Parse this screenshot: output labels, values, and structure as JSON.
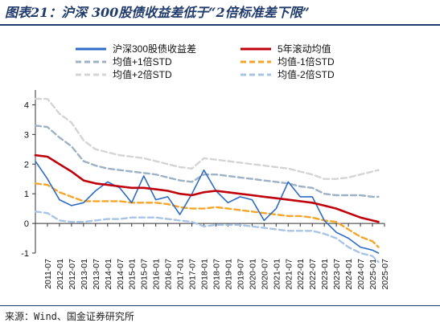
{
  "figure_title": "图表21：沪深 300股债收益差低于“2倍标准差下限”",
  "source": "来源：Wind、国金证券研究所",
  "colors": {
    "title": "#1f3a6b",
    "spread": "#2e6bc4",
    "ma5y": "#c0000a",
    "plus1": "#9db2c4",
    "minus1": "#f4a52a",
    "plus2": "#d4d4d4",
    "minus2": "#a9c4e6"
  },
  "chart_data": {
    "type": "line",
    "ylim": [
      -1,
      4.5
    ],
    "yticks": [
      "-1",
      "0",
      "1",
      "2",
      "3",
      "4"
    ],
    "xlim": [
      "2011-01",
      "2025-07"
    ],
    "xticks": [
      "2011-07",
      "2012-01",
      "2012-07",
      "2013-01",
      "2013-07",
      "2014-01",
      "2014-07",
      "2015-01",
      "2015-07",
      "2016-01",
      "2016-07",
      "2017-01",
      "2017-07",
      "2018-01",
      "2018-07",
      "2019-01",
      "2019-07",
      "2020-01",
      "2020-07",
      "2021-01",
      "2021-07",
      "2022-01",
      "2022-07",
      "2023-01",
      "2023-07",
      "2024-01",
      "2024-07",
      "2025-01",
      "2025-07"
    ],
    "legend": [
      "沪深300股债收益差",
      "5年滚动均值",
      "均值+1倍STD",
      "均值-1倍STD",
      "均值+2倍STD",
      "均值-2倍STD"
    ],
    "x": [
      "2011-01",
      "2011-07",
      "2012-01",
      "2012-07",
      "2013-01",
      "2013-07",
      "2014-01",
      "2014-07",
      "2015-01",
      "2015-07",
      "2016-01",
      "2016-07",
      "2017-01",
      "2017-07",
      "2018-01",
      "2018-07",
      "2019-01",
      "2019-07",
      "2020-01",
      "2020-07",
      "2021-01",
      "2021-07",
      "2022-01",
      "2022-07",
      "2023-01",
      "2023-07",
      "2024-01",
      "2024-07",
      "2025-01",
      "2025-04"
    ],
    "series": [
      {
        "name": "沪深300股债收益差",
        "values": [
          2.1,
          1.5,
          0.8,
          0.6,
          0.7,
          1.1,
          1.4,
          1.2,
          0.7,
          1.6,
          0.8,
          0.9,
          0.3,
          1.0,
          1.8,
          1.1,
          0.7,
          0.9,
          0.8,
          0.1,
          0.5,
          1.4,
          0.9,
          0.9,
          0.1,
          -0.3,
          -0.5,
          -0.8,
          -0.9,
          -1.0
        ]
      },
      {
        "name": "5年滚动均值",
        "values": [
          2.3,
          2.25,
          2.0,
          1.75,
          1.45,
          1.35,
          1.3,
          1.25,
          1.2,
          1.2,
          1.15,
          1.1,
          1.0,
          0.95,
          1.05,
          1.1,
          1.05,
          1.0,
          0.95,
          0.9,
          0.85,
          0.8,
          0.75,
          0.7,
          0.6,
          0.5,
          0.35,
          0.2,
          0.1,
          0.05
        ]
      },
      {
        "name": "均值+1倍STD",
        "values": [
          3.3,
          3.25,
          2.9,
          2.6,
          2.1,
          1.95,
          1.85,
          1.8,
          1.75,
          1.7,
          1.65,
          1.55,
          1.45,
          1.4,
          1.65,
          1.65,
          1.6,
          1.55,
          1.5,
          1.45,
          1.4,
          1.35,
          1.25,
          1.2,
          1.0,
          0.95,
          0.95,
          0.95,
          0.9,
          0.9
        ]
      },
      {
        "name": "均值-1倍STD",
        "values": [
          1.35,
          1.3,
          1.05,
          0.9,
          0.75,
          0.75,
          0.75,
          0.75,
          0.7,
          0.7,
          0.7,
          0.65,
          0.55,
          0.5,
          0.5,
          0.55,
          0.5,
          0.45,
          0.4,
          0.35,
          0.3,
          0.25,
          0.25,
          0.2,
          0.1,
          0.05,
          -0.2,
          -0.45,
          -0.6,
          -0.8
        ]
      },
      {
        "name": "均值+2倍STD",
        "values": [
          4.2,
          4.2,
          3.7,
          3.4,
          2.8,
          2.5,
          2.4,
          2.3,
          2.25,
          2.2,
          2.1,
          2.0,
          1.9,
          1.85,
          2.2,
          2.15,
          2.1,
          2.05,
          2.0,
          1.95,
          1.9,
          1.85,
          1.75,
          1.65,
          1.5,
          1.5,
          1.55,
          1.65,
          1.75,
          1.8
        ]
      },
      {
        "name": "均值-2倍STD",
        "values": [
          0.4,
          0.35,
          0.1,
          0.05,
          0.05,
          0.1,
          0.15,
          0.15,
          0.2,
          0.2,
          0.2,
          0.15,
          0.1,
          0.05,
          -0.1,
          -0.05,
          -0.05,
          -0.05,
          -0.1,
          -0.15,
          -0.2,
          -0.25,
          -0.25,
          -0.25,
          -0.35,
          -0.5,
          -0.8,
          -1.0,
          -1.1,
          -1.3
        ]
      }
    ]
  }
}
